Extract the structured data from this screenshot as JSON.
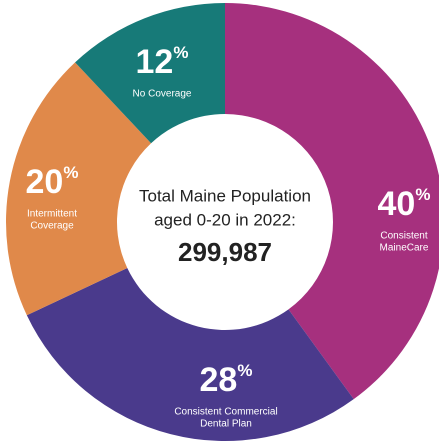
{
  "chart_data": {
    "type": "donut",
    "categories": [
      [
        "Consistent",
        "MaineCare"
      ],
      [
        "Consistent Commercial",
        "Dental Plan"
      ],
      [
        "Intermittent",
        "Coverage"
      ],
      [
        "No Coverage"
      ]
    ],
    "values": [
      40,
      28,
      20,
      12
    ],
    "value_labels": [
      "40%",
      "28%",
      "20%",
      "12%"
    ],
    "colors": [
      "#a6307e",
      "#4a3a8c",
      "#e0894a",
      "#177a78"
    ],
    "center_text": [
      "Total Maine Population",
      "aged 0-20 in 2022:"
    ],
    "total": "299,987"
  }
}
